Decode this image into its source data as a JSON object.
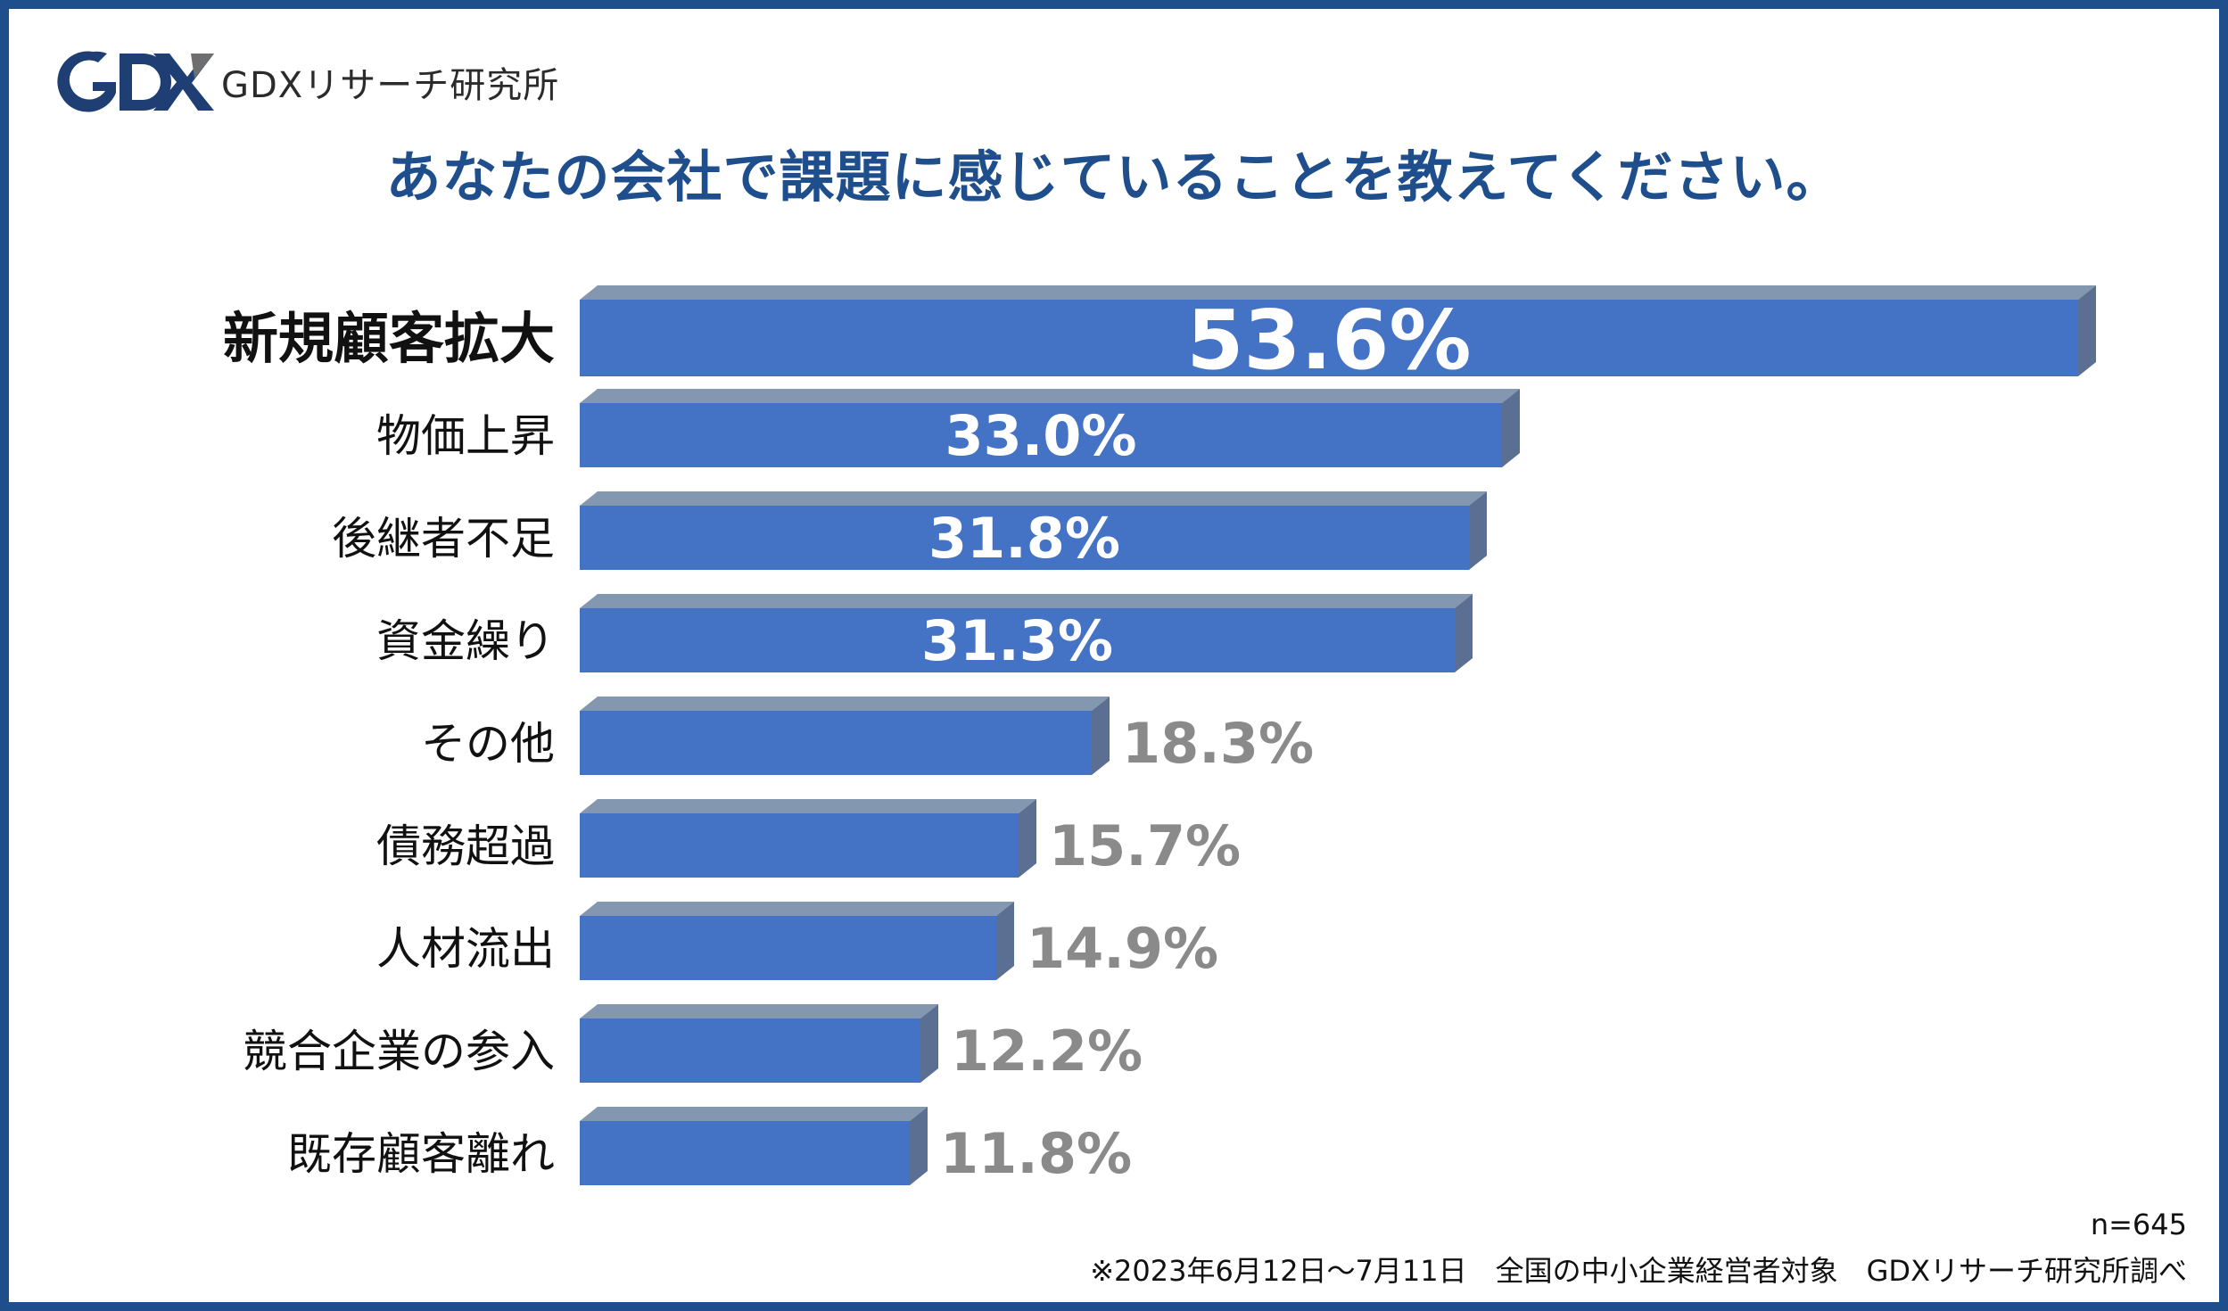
{
  "brand": {
    "logo_text": "GDXリサーチ研究所",
    "logo_mark": "gdx-logo",
    "colors": {
      "navy": "#1f3f74",
      "accent": "#6e6e6e"
    }
  },
  "footer": {
    "n": "n=645",
    "note": "※2023年6月12日～7月11日　全国の中小企業経営者対象　GDXリサーチ研究所調べ"
  },
  "chart_data": {
    "type": "bar",
    "orientation": "horizontal",
    "title": "あなたの会社で課題に感じていることを教えてください。",
    "categories": [
      "新規顧客拡大",
      "物価上昇",
      "後継者不足",
      "資金繰り",
      "その他",
      "債務超過",
      "人材流出",
      "競合企業の参入",
      "既存顧客離れ"
    ],
    "values": [
      53.6,
      33.0,
      31.8,
      31.3,
      18.3,
      15.7,
      14.9,
      12.2,
      11.8
    ],
    "value_labels": [
      "53.6%",
      "33.0%",
      "31.8%",
      "31.3%",
      "18.3%",
      "15.7%",
      "14.9%",
      "12.2%",
      "11.8%"
    ],
    "unit": "%",
    "xlim": [
      0,
      53.6
    ],
    "grid": false,
    "legend": "none",
    "colors": {
      "bar_face": "#4472c4",
      "bar_top": "#8497b0",
      "bar_side": "#5b6f92",
      "label_inside": "#ffffff",
      "label_outside": "#8a8a8a"
    }
  }
}
